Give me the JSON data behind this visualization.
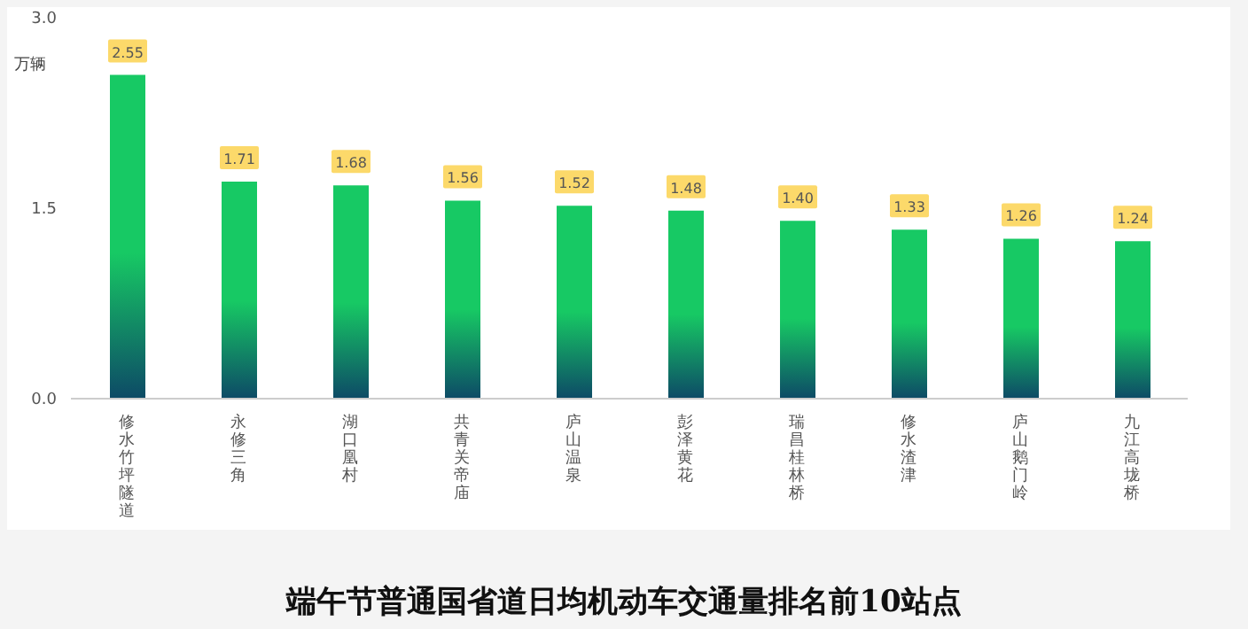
{
  "chart_data": {
    "type": "bar",
    "title": "端午节普通国省道日均机动车交通量排名前10站点",
    "ylabel": "万辆",
    "categories": [
      "修水竹坪隧道",
      "永修三角",
      "湖口凰村",
      "共青关帝庙",
      "庐山温泉",
      "彭泽黄花",
      "瑞昌桂林桥",
      "修水渣津",
      "庐山鹅门岭",
      "九江高垅桥"
    ],
    "values": [
      2.55,
      1.71,
      1.68,
      1.56,
      1.52,
      1.48,
      1.4,
      1.33,
      1.26,
      1.24
    ],
    "value_labels": [
      "2.55",
      "1.71",
      "1.68",
      "1.56",
      "1.52",
      "1.48",
      "1.40",
      "1.33",
      "1.26",
      "1.24"
    ],
    "color": "#17c964",
    "ylim": [
      0,
      3.0
    ],
    "yticks": [
      {
        "value": 0,
        "label": "0.0"
      },
      1.5,
      {
        "value": 3,
        "label": "3.0"
      }
    ]
  }
}
